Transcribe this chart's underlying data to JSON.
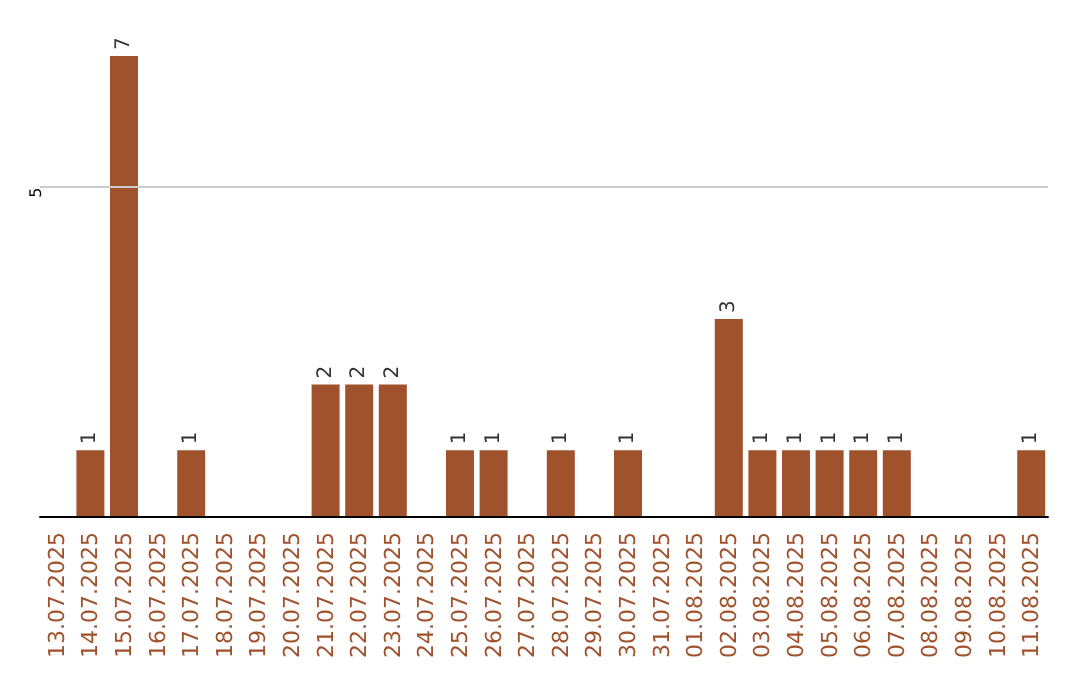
{
  "chart_data": {
    "type": "bar",
    "categories": [
      "13.07.2025",
      "14.07.2025",
      "15.07.2025",
      "16.07.2025",
      "17.07.2025",
      "18.07.2025",
      "19.07.2025",
      "20.07.2025",
      "21.07.2025",
      "22.07.2025",
      "23.07.2025",
      "24.07.2025",
      "25.07.2025",
      "26.07.2025",
      "27.07.2025",
      "28.07.2025",
      "29.07.2025",
      "30.07.2025",
      "31.07.2025",
      "01.08.2025",
      "02.08.2025",
      "03.08.2025",
      "04.08.2025",
      "05.08.2025",
      "06.08.2025",
      "07.08.2025",
      "08.08.2025",
      "09.08.2025",
      "10.08.2025",
      "11.08.2025"
    ],
    "values": [
      0,
      1,
      7,
      0,
      1,
      0,
      0,
      0,
      2,
      2,
      2,
      0,
      1,
      1,
      0,
      1,
      0,
      1,
      0,
      0,
      3,
      1,
      1,
      1,
      1,
      1,
      0,
      0,
      0,
      1
    ],
    "value_labels": [
      null,
      "1",
      "7",
      null,
      "1",
      null,
      null,
      null,
      "2",
      "2",
      "2",
      null,
      "1",
      "1",
      null,
      "1",
      null,
      "1",
      null,
      null,
      "3",
      "1",
      "1",
      "1",
      "1",
      "1",
      null,
      null,
      null,
      "1"
    ],
    "color": "#a0522d",
    "ref_lines": [
      {
        "axis": "y",
        "value": 5,
        "label": "5",
        "color": "#cccccc"
      }
    ]
  }
}
